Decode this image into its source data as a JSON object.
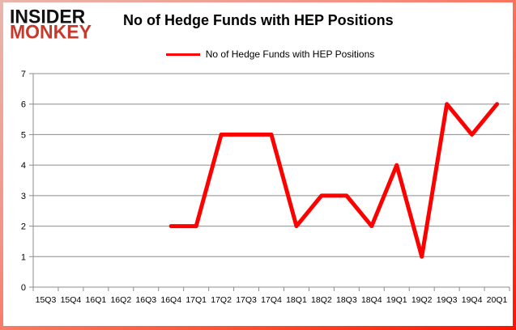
{
  "brand": {
    "line1": "INSIDER",
    "line2": "MONKEY"
  },
  "header": {
    "title": "No of Hedge Funds with HEP Positions"
  },
  "legend": {
    "label": "No of Hedge Funds with HEP Positions",
    "swatch_color": "#ff0000"
  },
  "colors": {
    "series_line": "#ff0000",
    "grid": "#8c8c8c",
    "axis": "#8c8c8c",
    "text": "#000000",
    "brand_black": "#111111",
    "brand_red": "#c6392b",
    "frame_gradient_start": "#e9b6ad",
    "frame_gradient_end": "#ff1200",
    "background": "#ffffff"
  },
  "chart_data": {
    "type": "line",
    "title": "No of Hedge Funds with HEP Positions",
    "categories": [
      "15Q3",
      "15Q4",
      "16Q1",
      "16Q2",
      "16Q3",
      "16Q4",
      "17Q1",
      "17Q2",
      "17Q3",
      "17Q4",
      "18Q1",
      "18Q2",
      "18Q3",
      "18Q4",
      "19Q1",
      "19Q2",
      "19Q3",
      "19Q4",
      "20Q1"
    ],
    "series": [
      {
        "name": "No of Hedge Funds with HEP Positions",
        "color": "#ff0000",
        "values": [
          null,
          null,
          null,
          null,
          null,
          2,
          2,
          5,
          5,
          5,
          2,
          3,
          3,
          2,
          4,
          1,
          6,
          5,
          6
        ]
      }
    ],
    "xlabel": "",
    "ylabel": "",
    "ylim": [
      0,
      7
    ],
    "yticks": [
      0,
      1,
      2,
      3,
      4,
      5,
      6,
      7
    ],
    "grid": true,
    "legend_position": "top-center"
  }
}
